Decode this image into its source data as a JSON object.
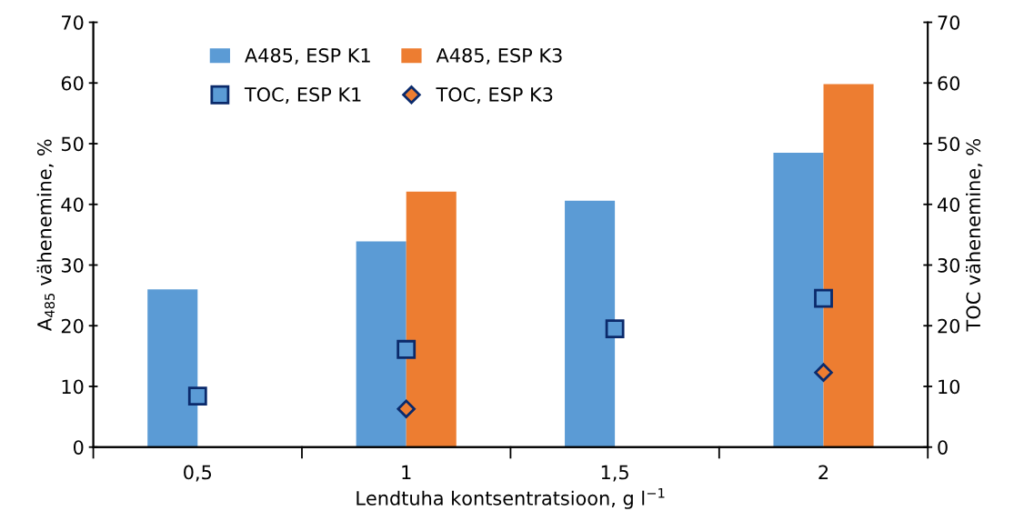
{
  "chart_data": {
    "type": "bar",
    "xlabel": "Lendtuha kontsentratsioon, g l$^{−1}$",
    "ylabel": "A$_{485}$ vähenemine, %",
    "y2label": "TOC vähenemine, %",
    "categories": [
      "0,5",
      "1",
      "1,5",
      "2"
    ],
    "series": [
      {
        "name": "A485, ESP K1",
        "color": "#5b9bd5",
        "values": [
          26.0,
          33.9,
          40.6,
          48.5
        ]
      },
      {
        "name": "A485, ESP K3",
        "color": "#ed7d31",
        "values": [
          null,
          42.1,
          null,
          59.8
        ]
      },
      {
        "name": "TOC, ESP K1",
        "type": "scatter",
        "axis": "y2",
        "marker": "square",
        "color": "#5b9bd5",
        "values": [
          8.4,
          16.1,
          19.5,
          24.5
        ]
      },
      {
        "name": "TOC, ESP K3",
        "type": "scatter",
        "axis": "y2",
        "marker": "diamond",
        "color": "#ed7d31",
        "values": [
          null,
          6.3,
          null,
          12.3
        ]
      }
    ],
    "ylim": [
      0,
      70
    ],
    "yticks": [
      0,
      10,
      20,
      30,
      40,
      50,
      60,
      70
    ],
    "y2lim": [
      0,
      70
    ],
    "y2ticks": [
      0,
      10,
      20,
      30,
      40,
      50,
      60,
      70
    ],
    "grid": false,
    "legend": "top left"
  }
}
